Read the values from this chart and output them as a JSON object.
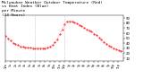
{
  "title_line1": "Milwaukee Weather Outdoor Temperature (Red)",
  "title_line2": "vs Heat Index (Blue)",
  "title_line3": "per Minute",
  "title_line4": "(24 Hours)",
  "title_fontsize": 3.2,
  "line_color": "#ff0000",
  "line_color2": "#0000ff",
  "background_color": "#ffffff",
  "ylim": [
    5,
    95
  ],
  "yticks": [
    10,
    20,
    30,
    40,
    50,
    60,
    70,
    80,
    90
  ],
  "xlim": [
    0,
    1439
  ],
  "vline1": 360,
  "vline2": 720,
  "temp_data": [
    55,
    54,
    53,
    52,
    51,
    50,
    49,
    48,
    47,
    46,
    45,
    44,
    43,
    42,
    42,
    41,
    40,
    40,
    39,
    39,
    38,
    38,
    37,
    37,
    36,
    36,
    35,
    35,
    35,
    34,
    34,
    34,
    33,
    33,
    33,
    33,
    32,
    32,
    32,
    32,
    32,
    32,
    32,
    31,
    31,
    31,
    31,
    31,
    31,
    31,
    31,
    31,
    31,
    30,
    30,
    30,
    30,
    30,
    30,
    30,
    30,
    30,
    30,
    30,
    30,
    30,
    30,
    30,
    30,
    30,
    30,
    30,
    30,
    30,
    30,
    30,
    30,
    30,
    30,
    30,
    30,
    30,
    30,
    30,
    31,
    31,
    31,
    31,
    32,
    32,
    33,
    33,
    34,
    35,
    36,
    37,
    38,
    39,
    40,
    41,
    42,
    43,
    44,
    45,
    47,
    48,
    50,
    52,
    54,
    56,
    58,
    60,
    62,
    64,
    66,
    68,
    70,
    72,
    74,
    76,
    78,
    79,
    80,
    81,
    82,
    83,
    83,
    83,
    84,
    84,
    84,
    84,
    84,
    84,
    84,
    83,
    83,
    83,
    82,
    82,
    81,
    81,
    80,
    80,
    79,
    79,
    78,
    78,
    77,
    77,
    76,
    76,
    75,
    75,
    74,
    74,
    73,
    72,
    71,
    71,
    70,
    70,
    69,
    69,
    68,
    68,
    67,
    67,
    66,
    66,
    65,
    65,
    64,
    64,
    63,
    63,
    62,
    62,
    61,
    60,
    59,
    59,
    58,
    57,
    56,
    56,
    55,
    54,
    53,
    52,
    51,
    50,
    49,
    49,
    48,
    47,
    46,
    45,
    44,
    43,
    42,
    42,
    41,
    40,
    39,
    39,
    38,
    37,
    37,
    36,
    35,
    35,
    34,
    34,
    33,
    33,
    32,
    32,
    31,
    31,
    30,
    30,
    30,
    29,
    29,
    28,
    28,
    27,
    27,
    27,
    26,
    26,
    26,
    25,
    25,
    25,
    25,
    25,
    24,
    24
  ]
}
